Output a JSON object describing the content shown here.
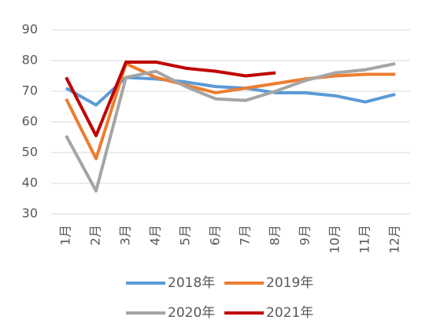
{
  "chart_data": {
    "type": "line",
    "categories": [
      "1月",
      "2月",
      "3月",
      "4月",
      "5月",
      "6月",
      "7月",
      "8月",
      "9月",
      "10月",
      "11月",
      "12月"
    ],
    "series": [
      {
        "name": "2018年",
        "color": "#5b9bd5",
        "values": [
          71,
          65.5,
          74.5,
          74,
          73,
          71.5,
          71,
          69.5,
          69.5,
          68.5,
          66.5,
          69
        ]
      },
      {
        "name": "2019年",
        "color": "#ed7d31",
        "values": [
          67.5,
          48,
          79,
          74.5,
          72,
          69.5,
          71,
          72.5,
          74,
          75,
          75.5,
          75.5
        ]
      },
      {
        "name": "2020年",
        "color": "#a5a5a5",
        "values": [
          55.5,
          37.5,
          74.5,
          76.5,
          71.5,
          67.5,
          67,
          70,
          73.5,
          76,
          77,
          79
        ]
      },
      {
        "name": "2021年",
        "color": "#c00000",
        "values": [
          74.5,
          55.5,
          79.5,
          79.5,
          77.5,
          76.5,
          75,
          76,
          null,
          null,
          null,
          null
        ]
      }
    ],
    "ylim": [
      30,
      90
    ],
    "yticks": [
      30,
      40,
      50,
      60,
      70,
      80,
      90
    ],
    "grid": true,
    "legend": "bottom"
  }
}
